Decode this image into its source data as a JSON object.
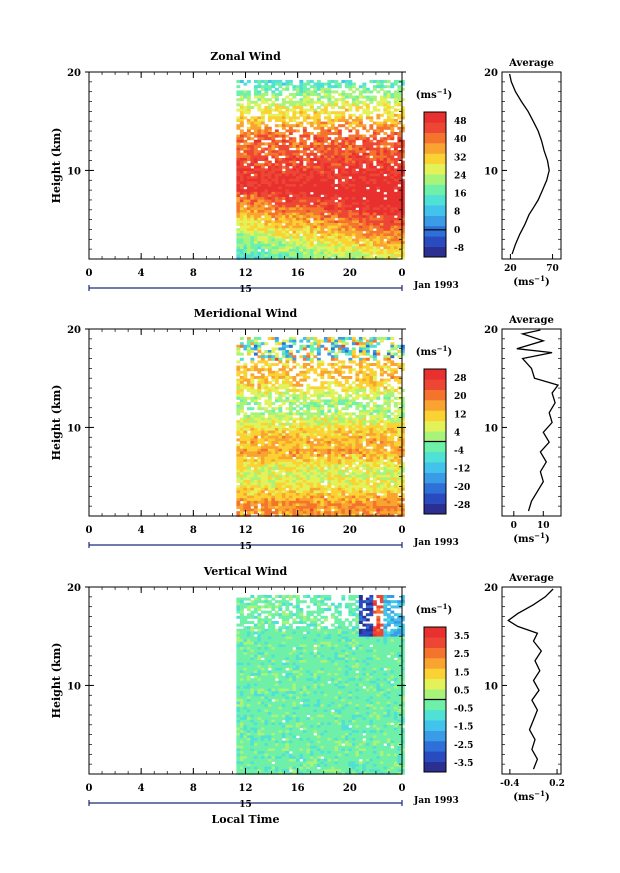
{
  "chart_data": [
    {
      "type": "heatmap",
      "title": "Zonal Wind",
      "ylabel": "Height (km)",
      "y_ticks": [
        "20",
        "10"
      ],
      "ylim": [
        1,
        20
      ],
      "x_ticks": [
        "0",
        "4",
        "8",
        "12",
        "16",
        "20",
        "0"
      ],
      "xlim": [
        0,
        24
      ],
      "date_label": "15",
      "month_label": "Jan 1993",
      "data_start_hour": 11.3,
      "colorbar": {
        "unit": "(ms",
        "unit_exp": "−1",
        "labels": [
          "48",
          "40",
          "32",
          "24",
          "16",
          "8",
          "0",
          "-8"
        ],
        "range": [
          -12,
          52
        ],
        "colors": [
          "#2c2f92",
          "#2a4bc0",
          "#2f6fd8",
          "#3a9be6",
          "#41c3ec",
          "#4fe0d6",
          "#6ef0a8",
          "#a8f47a",
          "#e4f25a",
          "#fbd234",
          "#f9a431",
          "#f4742d",
          "#ee4634",
          "#e8312f"
        ]
      },
      "profile": {
        "title": "Average",
        "xlabel": "(ms",
        "xlabel_exp": "−1",
        "x_ticks": [
          "20",
          "70"
        ],
        "xlim": [
          10,
          80
        ],
        "points": [
          [
            22,
            1.5
          ],
          [
            26,
            2.5
          ],
          [
            31,
            3.5
          ],
          [
            37,
            4.5
          ],
          [
            42,
            5.5
          ],
          [
            48,
            6.3
          ],
          [
            53,
            7
          ],
          [
            58,
            8
          ],
          [
            63,
            9
          ],
          [
            66,
            10
          ],
          [
            64,
            11
          ],
          [
            60,
            12
          ],
          [
            57,
            13
          ],
          [
            53,
            14
          ],
          [
            47,
            15
          ],
          [
            41,
            16
          ],
          [
            33,
            17
          ],
          [
            26,
            18
          ],
          [
            21,
            19
          ],
          [
            19,
            19.8
          ]
        ]
      }
    },
    {
      "type": "heatmap",
      "title": "Meridional Wind",
      "ylabel": "Height (km)",
      "y_ticks": [
        "20",
        "10"
      ],
      "ylim": [
        1,
        20
      ],
      "x_ticks": [
        "0",
        "4",
        "8",
        "12",
        "16",
        "20",
        "0"
      ],
      "xlim": [
        0,
        24
      ],
      "date_label": "15",
      "month_label": "Jan 1993",
      "data_start_hour": 11.3,
      "colorbar": {
        "unit": "(ms",
        "unit_exp": "−1",
        "labels": [
          "28",
          "20",
          "12",
          "4",
          "-4",
          "-12",
          "-20",
          "-28"
        ],
        "range": [
          -32,
          32
        ],
        "colors": [
          "#2c2f92",
          "#2a4bc0",
          "#2f6fd8",
          "#3a9be6",
          "#41c3ec",
          "#4fe0d6",
          "#6ef0a8",
          "#a8f47a",
          "#e4f25a",
          "#fbd234",
          "#f9a431",
          "#f4742d",
          "#ee4634",
          "#e8312f"
        ]
      },
      "profile": {
        "title": "Average",
        "xlabel": "(ms",
        "xlabel_exp": "−1",
        "x_ticks": [
          "0",
          "10"
        ],
        "xlim": [
          -4,
          16
        ],
        "points": [
          [
            5,
            1.5
          ],
          [
            6,
            2.5
          ],
          [
            8,
            3.5
          ],
          [
            10,
            4.5
          ],
          [
            9,
            5.5
          ],
          [
            11,
            6.5
          ],
          [
            9,
            7.5
          ],
          [
            12,
            8.5
          ],
          [
            10,
            9.5
          ],
          [
            13,
            10.5
          ],
          [
            12,
            11.5
          ],
          [
            14,
            12.5
          ],
          [
            13,
            13.5
          ],
          [
            15,
            14.3
          ],
          [
            7,
            15
          ],
          [
            6,
            16
          ],
          [
            3,
            17
          ],
          [
            13,
            17.6
          ],
          [
            1,
            18
          ],
          [
            10,
            18.8
          ],
          [
            3,
            19.5
          ],
          [
            9,
            19.9
          ]
        ]
      }
    },
    {
      "type": "heatmap",
      "title": "Vertical Wind",
      "ylabel": "Height (km)",
      "y_ticks": [
        "20",
        "10"
      ],
      "ylim": [
        1,
        20
      ],
      "x_ticks": [
        "0",
        "4",
        "8",
        "12",
        "16",
        "20",
        "0"
      ],
      "xlim": [
        0,
        24
      ],
      "xlabel": "Local Time",
      "date_label": "15",
      "month_label": "Jan 1993",
      "data_start_hour": 11.3,
      "colorbar": {
        "unit": "(ms",
        "unit_exp": "−1",
        "labels": [
          "3.5",
          "2.5",
          "1.5",
          "0.5",
          "-0.5",
          "-1.5",
          "-2.5",
          "-3.5"
        ],
        "range": [
          -4,
          4
        ],
        "colors": [
          "#2c2f92",
          "#2a4bc0",
          "#2f6fd8",
          "#3a9be6",
          "#41c3ec",
          "#4fe0d6",
          "#6ef0a8",
          "#a8f47a",
          "#e4f25a",
          "#fbd234",
          "#f9a431",
          "#f4742d",
          "#ee4634",
          "#e8312f"
        ]
      },
      "profile": {
        "title": "Average",
        "xlabel": "(ms",
        "xlabel_exp": "−1",
        "x_ticks": [
          "-0.4",
          "0.2"
        ],
        "xlim": [
          -0.5,
          0.25
        ],
        "points": [
          [
            -0.1,
            1.5
          ],
          [
            -0.05,
            2.5
          ],
          [
            -0.12,
            3.5
          ],
          [
            -0.08,
            4.5
          ],
          [
            -0.15,
            5.5
          ],
          [
            -0.1,
            6.5
          ],
          [
            -0.05,
            7.5
          ],
          [
            -0.12,
            8.5
          ],
          [
            -0.03,
            9.5
          ],
          [
            -0.1,
            10.5
          ],
          [
            -0.02,
            11.5
          ],
          [
            -0.08,
            12.5
          ],
          [
            0.0,
            13.5
          ],
          [
            -0.1,
            14.5
          ],
          [
            -0.05,
            15.3
          ],
          [
            -0.3,
            16
          ],
          [
            -0.42,
            16.6
          ],
          [
            -0.3,
            17.3
          ],
          [
            -0.1,
            18.2
          ],
          [
            0.05,
            19
          ],
          [
            0.15,
            19.8
          ]
        ]
      }
    }
  ]
}
